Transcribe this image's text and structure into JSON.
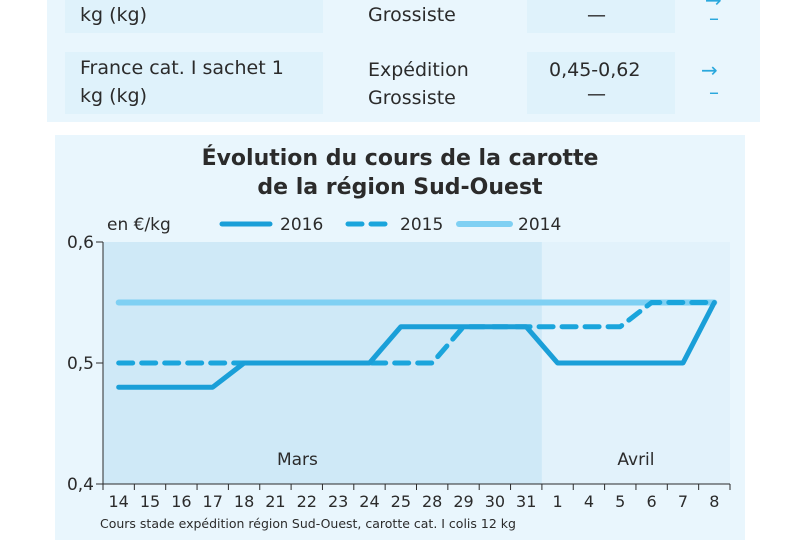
{
  "table": {
    "rows": [
      {
        "product": "kg (kg)",
        "stage_1": "",
        "stage_2": "Grossiste",
        "price_1": "",
        "price_2": "—",
        "trend_1": "→",
        "trend_2": "–"
      },
      {
        "product": "France cat. I sachet 1\nkg (kg)",
        "stage_1": "Expédition",
        "stage_2": "Grossiste",
        "price_1": "0,45-0,62",
        "price_2": "—",
        "trend_1": "→",
        "trend_2": "–"
      }
    ]
  },
  "colors": {
    "s2016": "#1a9fd8",
    "s2015": "#1aa5dc",
    "s2014": "#7fd0f3",
    "panel": "#e9f6fd",
    "plot_bg": "#cfe9f7",
    "plot_bg_april": "#e2f2fb"
  },
  "chart_data": {
    "type": "line",
    "title_line1": "Évolution du cours de la carotte",
    "title_line2": "de la région Sud-Ouest",
    "ylabel": "en €/kg",
    "ylim": [
      0.4,
      0.6
    ],
    "yticks": [
      "0,6",
      "0,5",
      "0,4"
    ],
    "categories": [
      "14",
      "15",
      "16",
      "17",
      "18",
      "21",
      "22",
      "23",
      "24",
      "25",
      "28",
      "29",
      "30",
      "31",
      "1",
      "4",
      "5",
      "6",
      "7",
      "8"
    ],
    "months": [
      {
        "label": "Mars"
      },
      {
        "label": "Avril"
      }
    ],
    "month_split_index": 14,
    "series": [
      {
        "name": "2016",
        "values": [
          0.48,
          0.48,
          0.48,
          0.48,
          0.5,
          0.5,
          0.5,
          0.5,
          0.5,
          0.53,
          0.53,
          0.53,
          0.53,
          0.53,
          0.5,
          0.5,
          0.5,
          0.5,
          0.5,
          0.55
        ]
      },
      {
        "name": "2015",
        "values": [
          0.5,
          0.5,
          0.5,
          0.5,
          0.5,
          0.5,
          0.5,
          0.5,
          0.5,
          0.5,
          0.5,
          0.53,
          0.53,
          0.53,
          0.53,
          0.53,
          0.53,
          0.55,
          0.55,
          0.55
        ]
      },
      {
        "name": "2014",
        "values": [
          0.55,
          0.55,
          0.55,
          0.55,
          0.55,
          0.55,
          0.55,
          0.55,
          0.55,
          0.55,
          0.55,
          0.55,
          0.55,
          0.55,
          0.55,
          0.55,
          0.55,
          0.55,
          0.55,
          0.55
        ]
      }
    ],
    "footnote": "Cours stade expédition région Sud-Ouest, carotte cat. I colis 12 kg"
  }
}
